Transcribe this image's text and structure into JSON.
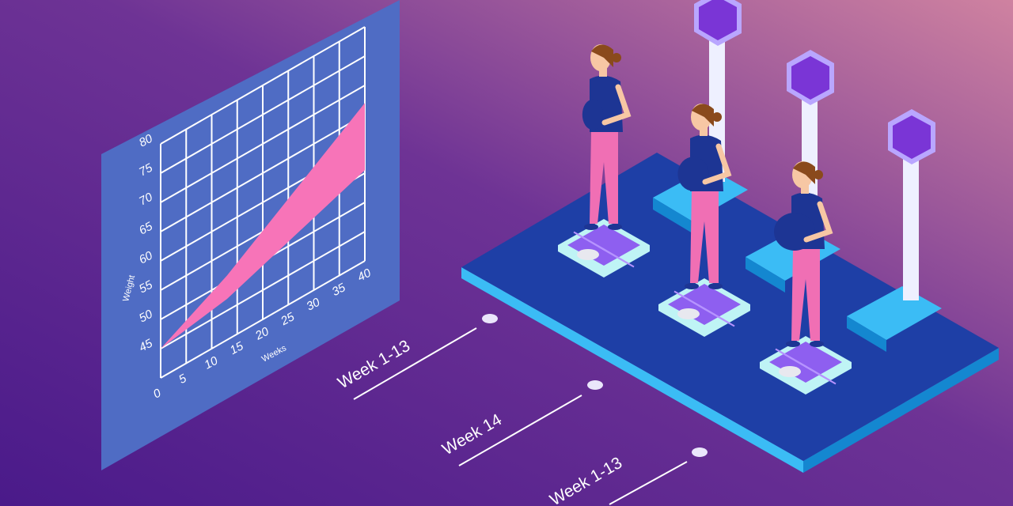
{
  "colors": {
    "background_start": "#4a1a8a",
    "background_end": "#c97d9e",
    "chart_panel": "#4f6cc4",
    "chart_band": "#f774b8",
    "platform_top": "#1e3fa6",
    "platform_edge": "#3bbcf5",
    "scale_display": "#7a35d6",
    "shirt": "#1d3594",
    "pants": "#f06fb4",
    "hair": "#8a4a1c",
    "skin": "#f7c7a4"
  },
  "chart": {
    "x_label": "Weeks",
    "y_label": "Weight",
    "x_ticks": [
      "0",
      "5",
      "10",
      "15",
      "20",
      "25",
      "30",
      "35",
      "40"
    ],
    "y_ticks": [
      "45",
      "50",
      "55",
      "60",
      "65",
      "70",
      "75",
      "80"
    ]
  },
  "chart_data": {
    "type": "area",
    "xlabel": "Weeks",
    "ylabel": "Weight",
    "xlim": [
      0,
      40
    ],
    "ylim": [
      40,
      80
    ],
    "grid": true,
    "series": [
      {
        "values_x": [
          0,
          13,
          40
        ],
        "upper": [
          45,
          51,
          67
        ],
        "lower": [
          45,
          47,
          55.5
        ]
      }
    ]
  },
  "timeline": [
    {
      "label": "Week 1-13"
    },
    {
      "label": "Week 14"
    },
    {
      "label": "Week 1-13"
    }
  ],
  "icons": [
    "weight-scale-icon",
    "pregnant-woman-figure"
  ]
}
